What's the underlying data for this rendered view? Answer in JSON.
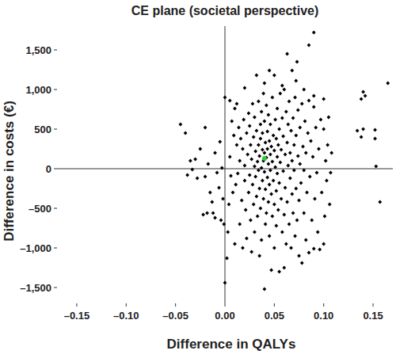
{
  "chart_data": {
    "type": "scatter",
    "title": "CE plane (societal perspective)",
    "x_label": "Difference in QALYs",
    "y_label": "Difference in costs (€)",
    "xlim": [
      -0.17,
      0.17
    ],
    "ylim": [
      -1700,
      1800
    ],
    "xticks": [
      {
        "value": -0.15,
        "label": "–0.15"
      },
      {
        "value": -0.1,
        "label": "–0.10"
      },
      {
        "value": -0.05,
        "label": "–0.05"
      },
      {
        "value": 0,
        "label": "0.00"
      },
      {
        "value": 0.05,
        "label": "0.05"
      },
      {
        "value": 0.1,
        "label": "0.10"
      },
      {
        "value": 0.15,
        "label": "0.15"
      }
    ],
    "yticks": [
      {
        "value": -1500,
        "label": "–1,500"
      },
      {
        "value": -1000,
        "label": "–1,000"
      },
      {
        "value": -500,
        "label": "–500"
      },
      0,
      500,
      {
        "value": 1000,
        "label": "1,000"
      },
      {
        "value": 1500,
        "label": "1,500"
      }
    ],
    "grid": false,
    "series": [
      {
        "color": "#000000",
        "marker": "diamond",
        "x": [
          -0.045,
          -0.04,
          -0.038,
          -0.035,
          -0.033,
          -0.03,
          -0.028,
          -0.025,
          -0.022,
          -0.02,
          -0.02,
          -0.018,
          -0.017,
          -0.015,
          -0.013,
          -0.012,
          -0.01,
          -0.01,
          -0.008,
          -0.006,
          -0.005,
          -0.004,
          -0.003,
          -0.002,
          -0.001,
          0,
          0,
          0.002,
          0.003,
          0.004,
          0.005,
          0.005,
          0.006,
          0.007,
          0.008,
          0.009,
          0.01,
          0.01,
          0.011,
          0.012,
          0.012,
          0.013,
          0.014,
          0.015,
          0.015,
          0.016,
          0.017,
          0.018,
          0.018,
          0.019,
          0.02,
          0.02,
          0.02,
          0.021,
          0.022,
          0.022,
          0.023,
          0.024,
          0.024,
          0.025,
          0.025,
          0.026,
          0.026,
          0.027,
          0.027,
          0.028,
          0.028,
          0.029,
          0.029,
          0.03,
          0.03,
          0.03,
          0.031,
          0.031,
          0.032,
          0.032,
          0.032,
          0.033,
          0.033,
          0.034,
          0.034,
          0.034,
          0.035,
          0.035,
          0.035,
          0.036,
          0.036,
          0.036,
          0.037,
          0.037,
          0.037,
          0.038,
          0.038,
          0.038,
          0.039,
          0.039,
          0.039,
          0.04,
          0.04,
          0.04,
          0.04,
          0.04,
          0.041,
          0.041,
          0.041,
          0.042,
          0.042,
          0.042,
          0.043,
          0.043,
          0.043,
          0.044,
          0.044,
          0.044,
          0.045,
          0.045,
          0.045,
          0.045,
          0.046,
          0.046,
          0.046,
          0.047,
          0.047,
          0.047,
          0.048,
          0.048,
          0.048,
          0.049,
          0.049,
          0.05,
          0.05,
          0.05,
          0.05,
          0.051,
          0.051,
          0.052,
          0.052,
          0.052,
          0.053,
          0.053,
          0.053,
          0.054,
          0.054,
          0.055,
          0.055,
          0.055,
          0.056,
          0.056,
          0.057,
          0.057,
          0.058,
          0.058,
          0.058,
          0.059,
          0.059,
          0.06,
          0.06,
          0.06,
          0.061,
          0.061,
          0.062,
          0.062,
          0.063,
          0.063,
          0.063,
          0.064,
          0.064,
          0.065,
          0.065,
          0.066,
          0.066,
          0.067,
          0.067,
          0.068,
          0.068,
          0.068,
          0.069,
          0.069,
          0.07,
          0.07,
          0.071,
          0.071,
          0.072,
          0.072,
          0.072,
          0.073,
          0.073,
          0.074,
          0.074,
          0.075,
          0.075,
          0.076,
          0.076,
          0.077,
          0.078,
          0.078,
          0.079,
          0.08,
          0.08,
          0.08,
          0.081,
          0.082,
          0.082,
          0.083,
          0.084,
          0.085,
          0.085,
          0.085,
          0.086,
          0.087,
          0.088,
          0.089,
          0.09,
          0.09,
          0.09,
          0.09,
          0.091,
          0.092,
          0.093,
          0.094,
          0.095,
          0.096,
          0.097,
          0.098,
          0.1,
          0.1,
          0.1,
          0.101,
          0.102,
          0.103,
          0.104,
          0.105,
          0.106,
          0.107,
          0.108,
          0.134,
          0.138,
          0.138,
          0.14,
          0.14,
          0.142,
          0.152,
          0.152,
          0.153,
          0.157,
          0.165
        ],
        "values": [
          560,
          450,
          -80,
          100,
          -10,
          120,
          -120,
          250,
          -580,
          520,
          -100,
          -560,
          60,
          -300,
          -420,
          -560,
          -620,
          200,
          -50,
          -240,
          340,
          -650,
          10,
          -380,
          -700,
          -1440,
          900,
          -1130,
          -800,
          -450,
          860,
          150,
          -90,
          600,
          -300,
          420,
          760,
          -950,
          -200,
          820,
          300,
          -60,
          520,
          -700,
          100,
          380,
          -400,
          -1000,
          250,
          620,
          1020,
          -150,
          40,
          -520,
          450,
          -880,
          180,
          700,
          -300,
          -80,
          540,
          300,
          -650,
          120,
          -1050,
          820,
          -200,
          400,
          -450,
          30,
          650,
          -800,
          220,
          -100,
          1180,
          480,
          -350,
          90,
          -600,
          300,
          -20,
          850,
          -1100,
          160,
          -250,
          560,
          -500,
          380,
          10,
          720,
          -900,
          240,
          -150,
          450,
          -380,
          100,
          950,
          1080,
          -1520,
          200,
          -40,
          600,
          -700,
          330,
          -260,
          140,
          -560,
          800,
          250,
          -110,
          470,
          -420,
          60,
          680,
          1240,
          -200,
          350,
          -850,
          180,
          -20,
          560,
          -1280,
          280,
          -320,
          900,
          90,
          -600,
          420,
          -150,
          1180,
          -450,
          230,
          -1000,
          620,
          20,
          -280,
          380,
          -720,
          150,
          760,
          -60,
          -520,
          300,
          -1300,
          500,
          -180,
          80,
          950,
          -380,
          240,
          1050,
          -800,
          640,
          -30,
          410,
          1000,
          -1250,
          -580,
          180,
          -240,
          720,
          -950,
          1450,
          330,
          -420,
          40,
          560,
          -700,
          850,
          200,
          -120,
          -1000,
          480,
          1240,
          -320,
          100,
          640,
          -560,
          300,
          -20,
          900,
          -850,
          1110,
          420,
          -250,
          1350,
          -650,
          160,
          740,
          -400,
          -1100,
          520,
          60,
          -180,
          -1190,
          820,
          280,
          1000,
          -560,
          -20,
          600,
          -900,
          200,
          -300,
          450,
          860,
          1560,
          -1060,
          -100,
          350,
          -650,
          150,
          1720,
          920,
          780,
          -1010,
          -380,
          520,
          -50,
          -800,
          250,
          -1020,
          620,
          -300,
          880,
          500,
          -950,
          -600,
          100,
          -150,
          300,
          650,
          -450,
          -50,
          200,
          480,
          400,
          880,
          970,
          500,
          920,
          490,
          380,
          30,
          -420,
          1080
        ]
      },
      {
        "color": "#33cc33",
        "marker": "circle",
        "x": [
          0.04
        ],
        "values": [
          130
        ]
      }
    ]
  }
}
